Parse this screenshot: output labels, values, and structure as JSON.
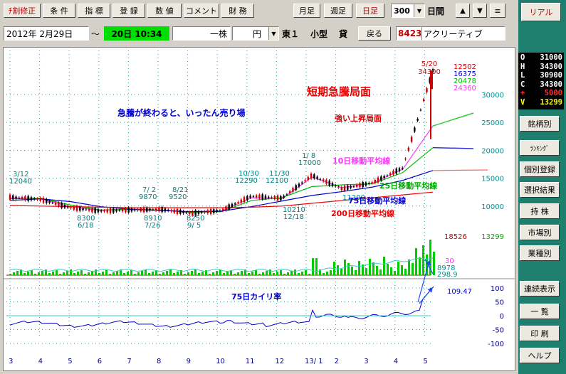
{
  "toolbar": {
    "revise": "ﾁ割修正",
    "condition": "条 件",
    "index": "指 標",
    "register": "登 録",
    "numeric": "数 値",
    "comment": "コメント",
    "finance": "財 務",
    "monthly": "月足",
    "weekly": "週足",
    "daily": "日足",
    "span_value": "300",
    "span_unit": "日間",
    "up_arrow": "▲",
    "down_arrow": "▼",
    "menu_icon": "≡"
  },
  "realtime_button": "リアル",
  "info_bar": {
    "date": "2012年 2月29日",
    "tilde": "～",
    "date2": "20日 10:34",
    "unit": "一株",
    "currency": "円",
    "market": "東１",
    "size": "小型",
    "lending": "貸",
    "back": "戻る",
    "code": "8423",
    "name": "アクリーティブ"
  },
  "quote": [
    {
      "key": "O",
      "value": "31000",
      "color": "#ffffff"
    },
    {
      "key": "H",
      "value": "34300",
      "color": "#ffffff"
    },
    {
      "key": "L",
      "value": "30900",
      "color": "#ffffff"
    },
    {
      "key": "C",
      "value": "34300",
      "color": "#ffffff"
    },
    {
      "key": "+",
      "value": "5000",
      "color": "#ff3030"
    },
    {
      "key": "V",
      "value": "13299",
      "color": "#ffff00"
    }
  ],
  "side_buttons": {
    "stock_list": "銘柄別",
    "ranking": "ﾗﾝｷﾝｸﾞ",
    "individual": "個別登録",
    "selection": "選択結果",
    "holdings": "持 株",
    "by_market": "市場別",
    "by_sector": "業種別",
    "continuous": "連続表示",
    "list": "一 覧",
    "print": "印 刷",
    "help": "ヘルプ"
  },
  "chart": {
    "price_labels": {
      "hi_date": "5/20",
      "hi_value": "34300",
      "v1": "12502",
      "v2": "16375",
      "v3": "20478",
      "v4": "24360"
    },
    "y_ticks": [
      "30000",
      "25000",
      "20000",
      "15000",
      "10000"
    ],
    "volume": {
      "max_label": "18526",
      "last_label": "13299",
      "r1": "30",
      "r2": "8978",
      "r3": "298.9"
    },
    "dev_ticks": [
      "100",
      "50",
      "0",
      "-50",
      "-100"
    ],
    "dev_value": "109.47",
    "x_ticks": [
      "3",
      "4",
      "5",
      "6",
      "7",
      "8",
      "9",
      "10",
      "11",
      "12",
      "13/ 1",
      "2",
      "3",
      "4",
      "5"
    ],
    "points": [
      {
        "date": "3/12",
        "value": "12040"
      },
      {
        "date": "7/ 2",
        "value": "9870"
      },
      {
        "date": "8/21",
        "value": "9520"
      },
      {
        "date": "10/30",
        "value": "12290"
      },
      {
        "date": "11/30",
        "value": "12100"
      },
      {
        "date": "1/ 8",
        "value": "17000"
      }
    ],
    "lows": [
      {
        "value": "8300",
        "date": "6/18"
      },
      {
        "value": "8910",
        "date": "7/26"
      },
      {
        "value": "8250",
        "date": "9/ 5"
      },
      {
        "value": "10210",
        "date": "12/18"
      },
      {
        "value": "11290",
        "date": ""
      }
    ],
    "annotations": {
      "after_surge": "急騰が終わると、いったん売り場",
      "short_surge": "短期急騰局面",
      "strong_up": "強い上昇局面",
      "ma10": "10日移動平均線",
      "ma25": "25日移動平均線",
      "ma75": "75日移動平均線",
      "ma200": "200日移動平均線",
      "deviation": "75日カイリ率"
    }
  },
  "chart_data": {
    "type": "line",
    "title": "",
    "x": [
      "12/3",
      "12/4",
      "12/5",
      "12/6",
      "12/7",
      "12/8",
      "12/9",
      "12/10",
      "12/11",
      "12/12",
      "13/1",
      "13/2",
      "13/3",
      "13/4",
      "13/5"
    ],
    "series": [
      {
        "name": "",
        "values": [
          11600,
          11200,
          9700,
          9100,
          9300,
          9400,
          8700,
          9200,
          11800,
          11400,
          15500,
          13100,
          14200,
          16800,
          34300
        ]
      },
      {
        "name": "10日移動平均線",
        "values": [
          11500,
          11300,
          9900,
          9200,
          9500,
          9300,
          8800,
          9100,
          11500,
          11300,
          15200,
          13300,
          14100,
          16600,
          24360
        ]
      },
      {
        "name": "25日移動平均線",
        "values": [
          11300,
          11400,
          10200,
          9300,
          9400,
          9300,
          8900,
          9000,
          11000,
          11500,
          13500,
          13800,
          14000,
          16000,
          20478
        ]
      },
      {
        "name": "75日移動平均線",
        "values": [
          11000,
          11300,
          10800,
          9900,
          9400,
          9200,
          9000,
          9100,
          9900,
          10900,
          11900,
          12600,
          13400,
          14600,
          16375
        ]
      },
      {
        "name": "200日移動平均線",
        "values": [
          10100,
          10000,
          9900,
          9800,
          9700,
          9700,
          9700,
          9700,
          9800,
          10000,
          10500,
          11000,
          11500,
          12000,
          12502
        ]
      }
    ],
    "deviation": {
      "name": "75日カイリ率",
      "last": 109.47,
      "ylim": [
        -100,
        100
      ]
    },
    "ylim": [
      5000,
      35000
    ]
  }
}
